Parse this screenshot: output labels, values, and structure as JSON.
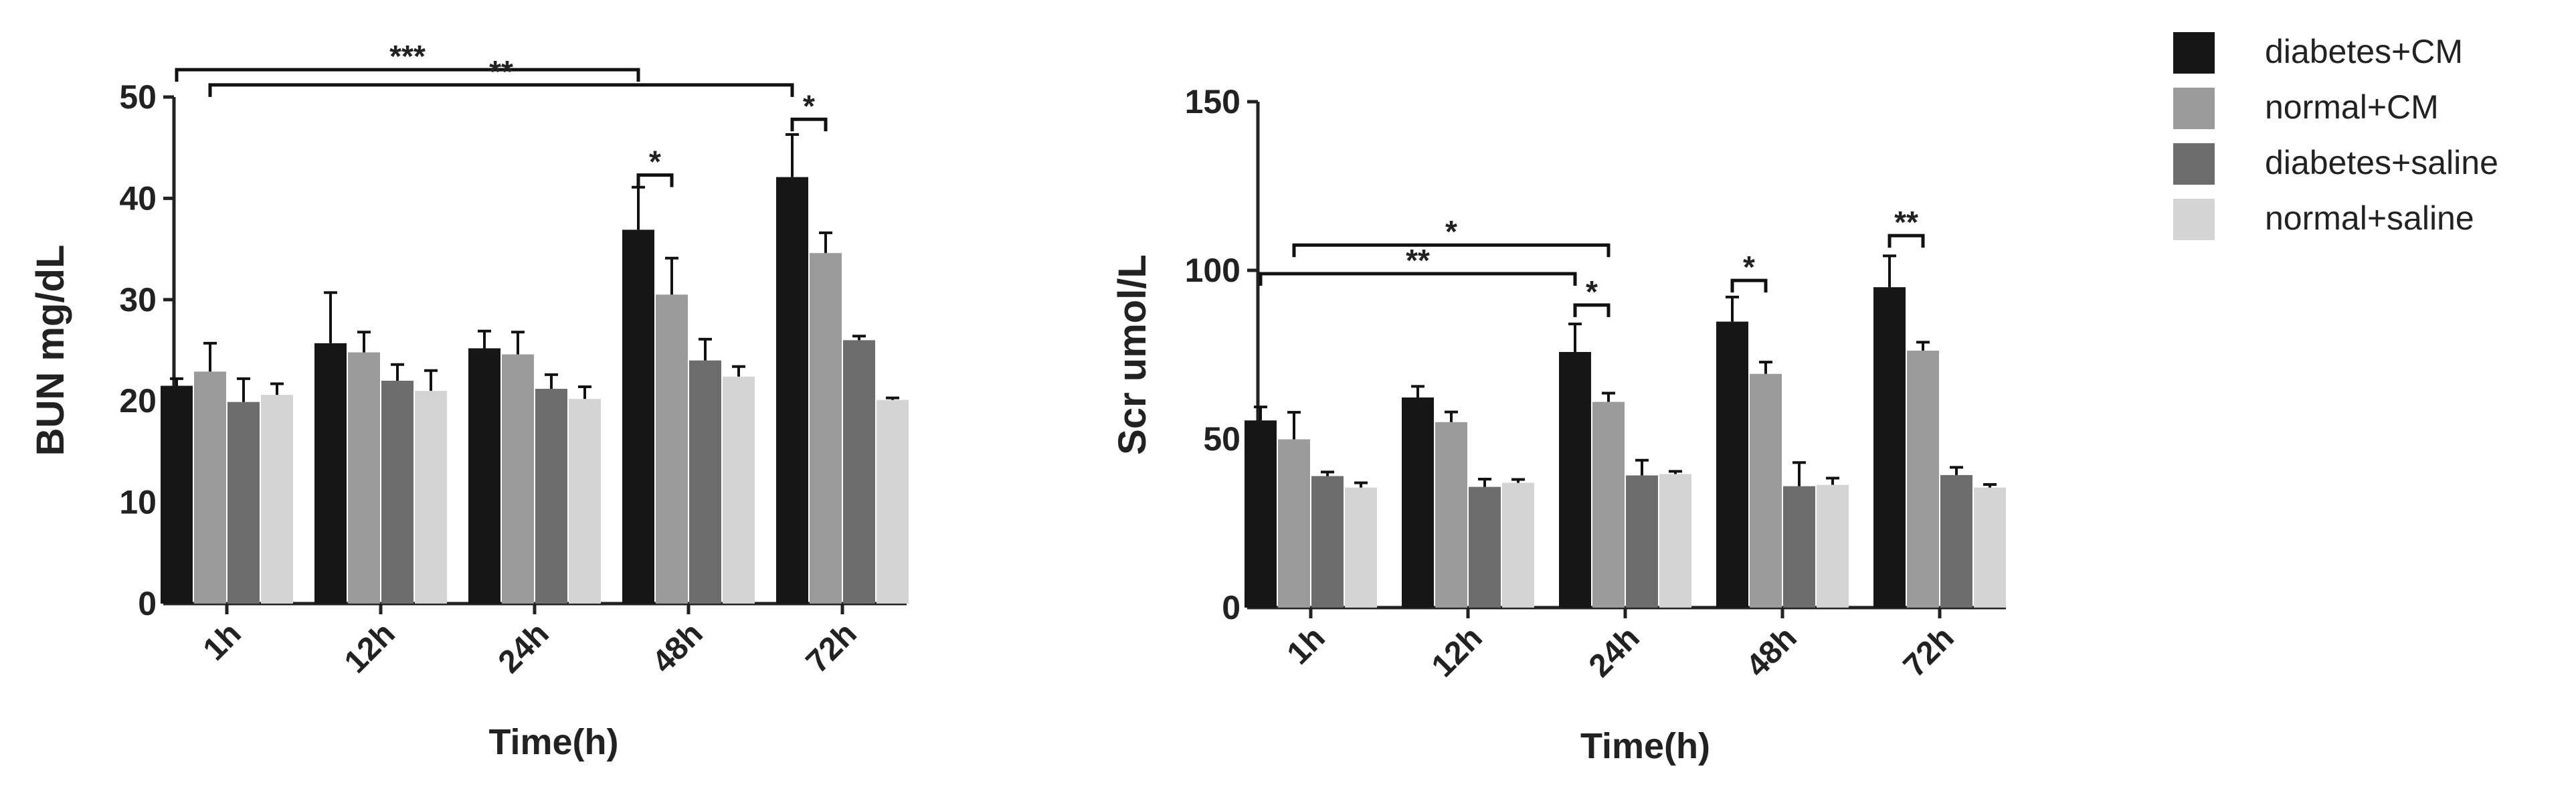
{
  "legend": {
    "placement": "top-right",
    "entries": [
      {
        "label": "diabetes+CM",
        "color": "#161616"
      },
      {
        "label": "normal+CM",
        "color": "#9b9b9b"
      },
      {
        "label": "diabetes+saline",
        "color": "#6d6d6d"
      },
      {
        "label": "normal+saline",
        "color": "#d4d4d4"
      }
    ]
  },
  "chart_data": [
    {
      "type": "bar",
      "title": "",
      "xlabel": "Time(h)",
      "ylabel": "BUN mg/dL",
      "ylim": [
        0,
        50
      ],
      "yticks": [
        0,
        10,
        20,
        30,
        40,
        50
      ],
      "grid": false,
      "categories": [
        "1h",
        "12h",
        "24h",
        "48h",
        "72h"
      ],
      "series": [
        {
          "name": "diabetes+CM",
          "values": [
            21.5,
            25.7,
            25.2,
            36.9,
            42.1
          ],
          "errors": [
            0.7,
            5.0,
            1.7,
            4.2,
            4.2
          ]
        },
        {
          "name": "normal+CM",
          "values": [
            22.9,
            24.8,
            24.6,
            30.5,
            34.6
          ],
          "errors": [
            2.8,
            2.0,
            2.2,
            3.6,
            2.0
          ]
        },
        {
          "name": "diabetes+saline",
          "values": [
            19.9,
            22.0,
            21.2,
            24.0,
            26.0
          ],
          "errors": [
            2.3,
            1.6,
            1.4,
            2.1,
            0.4
          ]
        },
        {
          "name": "normal+saline",
          "values": [
            20.6,
            21.0,
            20.2,
            22.4,
            20.1
          ],
          "errors": [
            1.1,
            2.0,
            1.2,
            1.0,
            0.2
          ]
        }
      ],
      "annotations": [
        {
          "label": "***",
          "from": [
            0,
            0
          ],
          "to": [
            3,
            0
          ],
          "y": 52.7
        },
        {
          "label": "**",
          "from": [
            0,
            1
          ],
          "to": [
            4,
            0
          ],
          "y": 51.2
        },
        {
          "label": "*",
          "from": [
            3,
            0
          ],
          "to": [
            3,
            1
          ],
          "y": 42.3
        },
        {
          "label": "*",
          "from": [
            4,
            0
          ],
          "to": [
            4,
            1
          ],
          "y": 47.8
        }
      ]
    },
    {
      "type": "bar",
      "title": "",
      "xlabel": "Time(h)",
      "ylabel": "Scr umol/L",
      "ylim": [
        0,
        150
      ],
      "yticks": [
        0,
        50,
        100,
        150
      ],
      "grid": false,
      "categories": [
        "1h",
        "12h",
        "24h",
        "48h",
        "72h"
      ],
      "series": [
        {
          "name": "diabetes+CM",
          "values": [
            55.5,
            62.3,
            75.8,
            84.8,
            95.0
          ],
          "errors": [
            4.0,
            3.3,
            8.3,
            7.3,
            9.3
          ]
        },
        {
          "name": "normal+CM",
          "values": [
            49.9,
            55.0,
            61.0,
            69.3,
            76.2
          ],
          "errors": [
            8.0,
            3.0,
            2.6,
            3.5,
            2.5
          ]
        },
        {
          "name": "diabetes+saline",
          "values": [
            39.0,
            35.8,
            39.2,
            36.0,
            39.3
          ],
          "errors": [
            1.2,
            2.3,
            4.5,
            7.0,
            2.3
          ]
        },
        {
          "name": "normal+saline",
          "values": [
            35.6,
            37.0,
            39.6,
            36.4,
            35.6
          ],
          "errors": [
            1.4,
            1.0,
            0.8,
            2.0,
            0.9
          ]
        }
      ],
      "annotations": [
        {
          "label": "*",
          "from": [
            0,
            1
          ],
          "to": [
            2,
            1
          ],
          "y": 107.5
        },
        {
          "label": "**",
          "from": [
            0,
            0
          ],
          "to": [
            2,
            0
          ],
          "y": 99.0
        },
        {
          "label": "*",
          "from": [
            2,
            0
          ],
          "to": [
            2,
            1
          ],
          "y": 89.7
        },
        {
          "label": "*",
          "from": [
            3,
            0
          ],
          "to": [
            3,
            1
          ],
          "y": 97.0
        },
        {
          "label": "**",
          "from": [
            4,
            0
          ],
          "to": [
            4,
            1
          ],
          "y": 110.3
        }
      ]
    }
  ]
}
